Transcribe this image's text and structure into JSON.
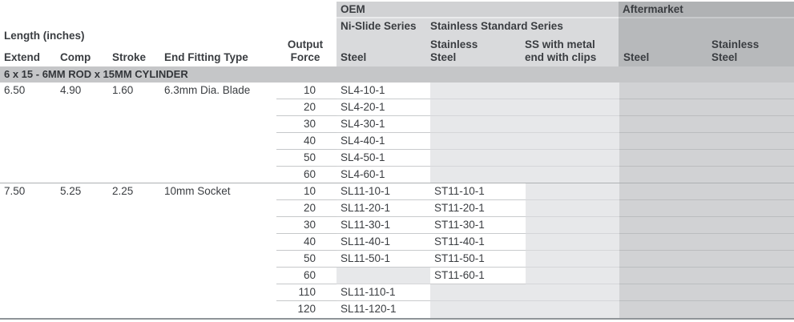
{
  "header": {
    "length_group_label": "Length (inches)",
    "columns": {
      "extend": "Extend",
      "comp": "Comp",
      "stroke": "Stroke",
      "fitting": "End Fitting Type",
      "output_force": "Output Force"
    },
    "oem": {
      "label": "OEM",
      "ni_slide_series": "Ni-Slide Series",
      "stainless_standard_series": "Stainless Standard Series",
      "steel": "Steel",
      "stainless_steel": "Stainless Steel",
      "ss_with_clips": "SS with metal end with clips"
    },
    "aftermarket": {
      "label": "Aftermarket",
      "steel": "Steel",
      "stainless_steel": "Stainless Steel"
    }
  },
  "section": {
    "title": "6 x 15 - 6MM ROD x 15MM CYLINDER"
  },
  "colors": {
    "oem_bar": "#d1d2d4",
    "oem_block": "#d9dadc",
    "aftermarket_bar": "#b0b2b4",
    "aftermarket_block": "#b7b9bb",
    "section_bar": "#c5c6c8",
    "empty_cell": "#e7e8ea",
    "aftermarket_data": "#d1d2d4",
    "text": "#3a3d41"
  },
  "table": {
    "rows": [
      {
        "extend": "6.50",
        "comp": "4.90",
        "stroke": "1.60",
        "fitting": "6.3mm Dia. Blade",
        "force": "10",
        "steel": "SL4-10-1",
        "stainless": "",
        "clips": "",
        "aftermarket": ""
      },
      {
        "extend": "",
        "comp": "",
        "stroke": "",
        "fitting": "",
        "force": "20",
        "steel": "SL4-20-1",
        "stainless": "",
        "clips": "",
        "aftermarket": ""
      },
      {
        "extend": "",
        "comp": "",
        "stroke": "",
        "fitting": "",
        "force": "30",
        "steel": "SL4-30-1",
        "stainless": "",
        "clips": "",
        "aftermarket": ""
      },
      {
        "extend": "",
        "comp": "",
        "stroke": "",
        "fitting": "",
        "force": "40",
        "steel": "SL4-40-1",
        "stainless": "",
        "clips": "",
        "aftermarket": ""
      },
      {
        "extend": "",
        "comp": "",
        "stroke": "",
        "fitting": "",
        "force": "50",
        "steel": "SL4-50-1",
        "stainless": "",
        "clips": "",
        "aftermarket": ""
      },
      {
        "extend": "",
        "comp": "",
        "stroke": "",
        "fitting": "",
        "force": "60",
        "steel": "SL4-60-1",
        "stainless": "",
        "clips": "",
        "aftermarket": ""
      },
      {
        "extend": "7.50",
        "comp": "5.25",
        "stroke": "2.25",
        "fitting": "10mm Socket",
        "force": "10",
        "steel": "SL11-10-1",
        "stainless": "ST11-10-1",
        "clips": "",
        "aftermarket": ""
      },
      {
        "extend": "",
        "comp": "",
        "stroke": "",
        "fitting": "",
        "force": "20",
        "steel": "SL11-20-1",
        "stainless": "ST11-20-1",
        "clips": "",
        "aftermarket": ""
      },
      {
        "extend": "",
        "comp": "",
        "stroke": "",
        "fitting": "",
        "force": "30",
        "steel": "SL11-30-1",
        "stainless": "ST11-30-1",
        "clips": "",
        "aftermarket": ""
      },
      {
        "extend": "",
        "comp": "",
        "stroke": "",
        "fitting": "",
        "force": "40",
        "steel": "SL11-40-1",
        "stainless": "ST11-40-1",
        "clips": "",
        "aftermarket": ""
      },
      {
        "extend": "",
        "comp": "",
        "stroke": "",
        "fitting": "",
        "force": "50",
        "steel": "SL11-50-1",
        "stainless": "ST11-50-1",
        "clips": "",
        "aftermarket": ""
      },
      {
        "extend": "",
        "comp": "",
        "stroke": "",
        "fitting": "",
        "force": "60",
        "steel": "",
        "stainless": "ST11-60-1",
        "clips": "",
        "aftermarket": ""
      },
      {
        "extend": "",
        "comp": "",
        "stroke": "",
        "fitting": "",
        "force": "110",
        "steel": "SL11-110-1",
        "stainless": "",
        "clips": "",
        "aftermarket": ""
      },
      {
        "extend": "",
        "comp": "",
        "stroke": "",
        "fitting": "",
        "force": "120",
        "steel": "SL11-120-1",
        "stainless": "",
        "clips": "",
        "aftermarket": ""
      }
    ]
  }
}
